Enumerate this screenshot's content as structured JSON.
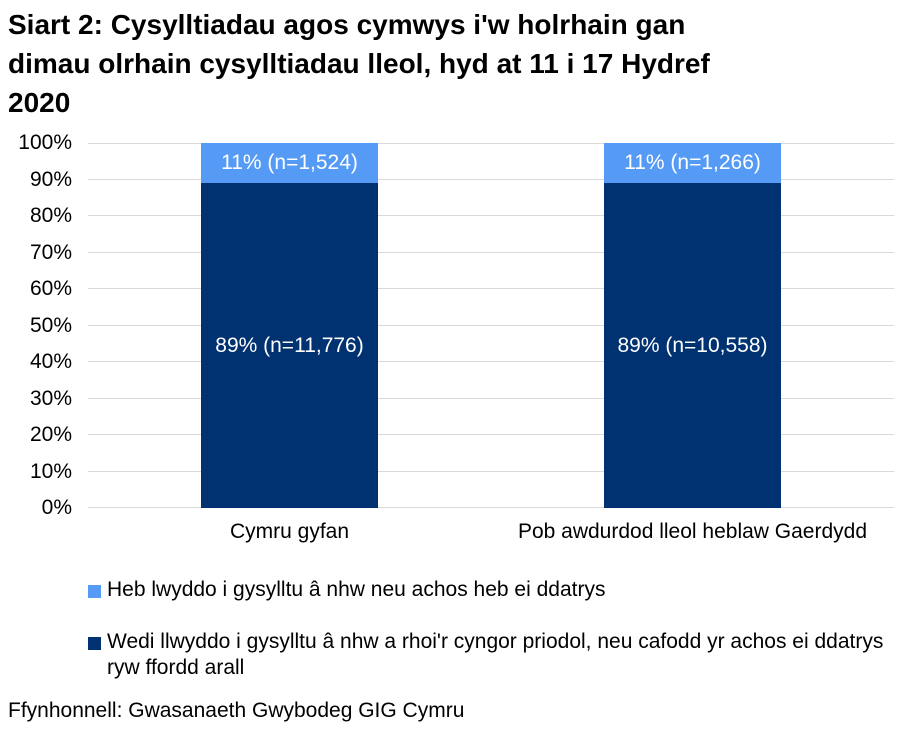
{
  "title": {
    "lines": [
      "Siart 2: Cysylltiadau agos cymwys i'w holrhain gan",
      "dimau olrhain cysylltiadau lleol, hyd at 11 i 17 Hydref",
      "2020"
    ]
  },
  "source": "Ffynhonnell: Gwasanaeth Gwybodeg GIG Cymru",
  "colors": {
    "unresolved_blue": "#559AF5",
    "resolved_navy": "#003170",
    "gridline": "#D9D9D9",
    "bar_label": "#FFFFFF",
    "text": "#000000"
  },
  "chart_data": {
    "type": "bar",
    "stacked": true,
    "categories": [
      "Cymru gyfan",
      "Pob awdurdod lleol heblaw Gaerdydd"
    ],
    "series": [
      {
        "name": "Wedi llwyddo i gysylltu â nhw a rhoi'r cyngor priodol, neu cafodd yr achos ei ddatrys ryw ffordd arall",
        "values": [
          89,
          89
        ],
        "counts": [
          11776,
          10558
        ],
        "labels": [
          "89% (n=11,776)",
          "89% (n=10,558)"
        ],
        "color": "#003170",
        "stack_position": "bottom"
      },
      {
        "name": "Heb lwyddo i gysylltu â nhw neu achos heb ei ddatrys",
        "values": [
          11,
          11
        ],
        "counts": [
          1524,
          1266
        ],
        "labels": [
          "11% (n=1,524)",
          "11% (n=1,266)"
        ],
        "color": "#559AF5",
        "stack_position": "top"
      }
    ],
    "xlabel": "",
    "ylabel": "",
    "ylim": [
      0,
      100
    ],
    "yticks": [
      "0%",
      "10%",
      "20%",
      "30%",
      "40%",
      "50%",
      "60%",
      "70%",
      "80%",
      "90%",
      "100%"
    ],
    "grid": true,
    "legend_position": "bottom",
    "legend": [
      {
        "label": "Heb lwyddo i gysylltu â nhw neu achos heb ei ddatrys",
        "color": "#559AF5"
      },
      {
        "label": "Wedi llwyddo i gysylltu â nhw a rhoi'r cyngor priodol, neu cafodd yr achos ei ddatrys ryw ffordd arall",
        "color": "#003170"
      }
    ]
  }
}
